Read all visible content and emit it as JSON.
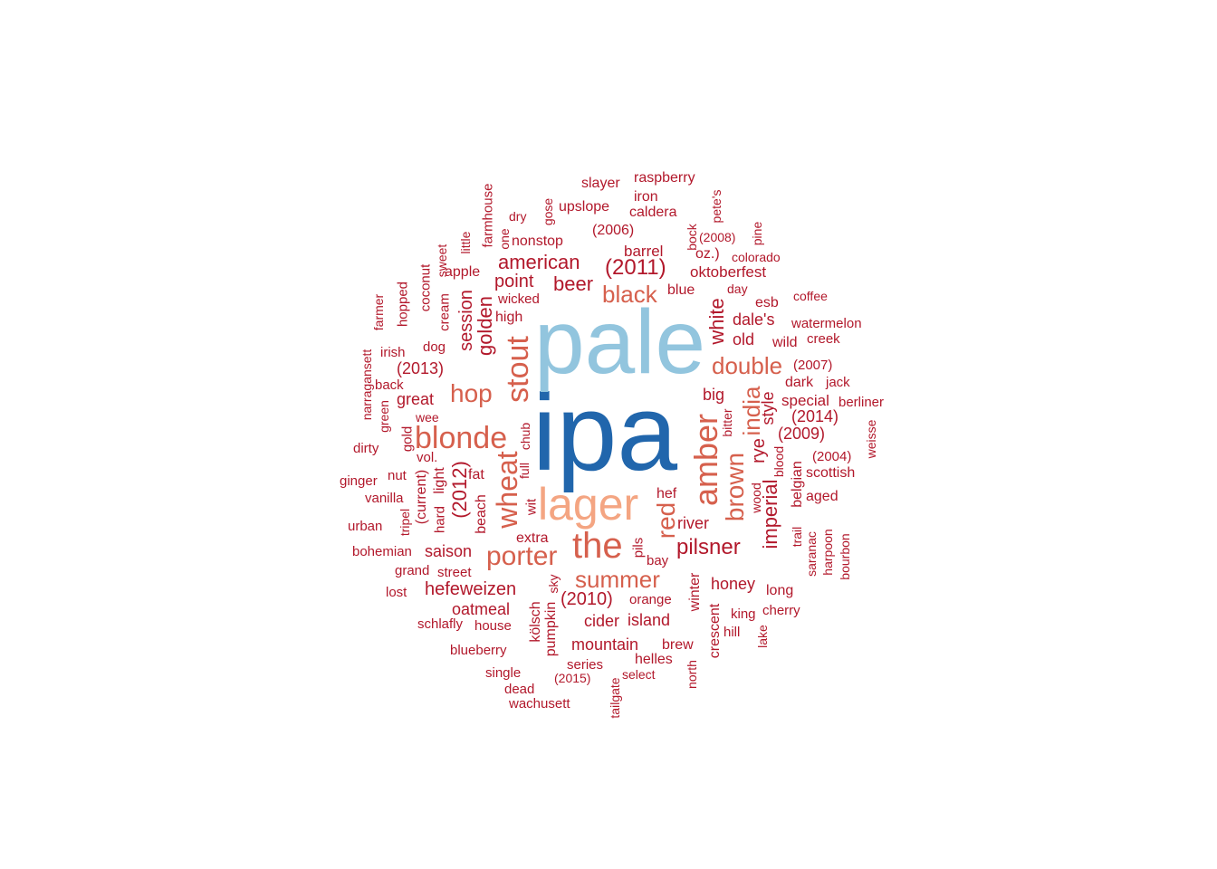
{
  "colors": {
    "c1": "#2166ac",
    "c2": "#92c5de",
    "c3": "#f4a582",
    "c4": "#d6604d",
    "c5": "#b2182b"
  },
  "words": [
    {
      "text": "ipa",
      "color": "c1"
    },
    {
      "text": "pale",
      "color": "c2"
    },
    {
      "text": "lager",
      "color": "c3"
    },
    {
      "text": "the",
      "color": "c4"
    },
    {
      "text": "amber",
      "color": "c4"
    },
    {
      "text": "blonde",
      "color": "c4"
    },
    {
      "text": "stout",
      "color": "c4"
    },
    {
      "text": "wheat",
      "color": "c4"
    },
    {
      "text": "porter",
      "color": "c4"
    },
    {
      "text": "summer",
      "color": "c4"
    },
    {
      "text": "hop",
      "color": "c4"
    },
    {
      "text": "red",
      "color": "c4"
    },
    {
      "text": "black",
      "color": "c4"
    },
    {
      "text": "double",
      "color": "c4"
    },
    {
      "text": "brown",
      "color": "c4"
    },
    {
      "text": "india",
      "color": "c4"
    },
    {
      "text": "(2011)",
      "color": "c5"
    },
    {
      "text": "(2012)",
      "color": "c5"
    },
    {
      "text": "american",
      "color": "c5"
    },
    {
      "text": "beer",
      "color": "c5"
    },
    {
      "text": "white",
      "color": "c5"
    },
    {
      "text": "golden",
      "color": "c5"
    },
    {
      "text": "pilsner",
      "color": "c5"
    },
    {
      "text": "imperial",
      "color": "c5"
    },
    {
      "text": "rye",
      "color": "c5"
    },
    {
      "text": "(2010)",
      "color": "c5"
    },
    {
      "text": "hefeweizen",
      "color": "c5"
    },
    {
      "text": "point",
      "color": "c5"
    },
    {
      "text": "session",
      "color": "c5"
    },
    {
      "text": "(2013)",
      "color": "c5"
    },
    {
      "text": "style",
      "color": "c5"
    },
    {
      "text": "dale's",
      "color": "c5"
    },
    {
      "text": "old",
      "color": "c5"
    },
    {
      "text": "saison",
      "color": "c5"
    },
    {
      "text": "great",
      "color": "c5"
    },
    {
      "text": "oatmeal",
      "color": "c5"
    },
    {
      "text": "cider",
      "color": "c5"
    },
    {
      "text": "island",
      "color": "c5"
    },
    {
      "text": "mountain",
      "color": "c5"
    },
    {
      "text": "honey",
      "color": "c5"
    },
    {
      "text": "river",
      "color": "c5"
    },
    {
      "text": "big",
      "color": "c5"
    },
    {
      "text": "(2014)",
      "color": "c5"
    },
    {
      "text": "(2009)",
      "color": "c5"
    },
    {
      "text": "special",
      "color": "c5"
    },
    {
      "text": "dark",
      "color": "c5"
    },
    {
      "text": "oktoberfest",
      "color": "c5"
    },
    {
      "text": "barrel",
      "color": "c5"
    },
    {
      "text": "nonstop",
      "color": "c5"
    },
    {
      "text": "(2006)",
      "color": "c5"
    },
    {
      "text": "upslope",
      "color": "c5"
    },
    {
      "text": "caldera",
      "color": "c5"
    },
    {
      "text": "slayer",
      "color": "c5"
    },
    {
      "text": "raspberry",
      "color": "c5"
    },
    {
      "text": "iron",
      "color": "c5"
    },
    {
      "text": "pete's",
      "color": "c5"
    },
    {
      "text": "bock",
      "color": "c5"
    },
    {
      "text": "(2008)",
      "color": "c5"
    },
    {
      "text": "pine",
      "color": "c5"
    },
    {
      "text": "oz.)",
      "color": "c5"
    },
    {
      "text": "colorado",
      "color": "c5"
    },
    {
      "text": "blue",
      "color": "c5"
    },
    {
      "text": "day",
      "color": "c5"
    },
    {
      "text": "esb",
      "color": "c5"
    },
    {
      "text": "coffee",
      "color": "c5"
    },
    {
      "text": "watermelon",
      "color": "c5"
    },
    {
      "text": "wild",
      "color": "c5"
    },
    {
      "text": "creek",
      "color": "c5"
    },
    {
      "text": "(2007)",
      "color": "c5"
    },
    {
      "text": "jack",
      "color": "c5"
    },
    {
      "text": "berliner",
      "color": "c5"
    },
    {
      "text": "weisse",
      "color": "c5"
    },
    {
      "text": "(2004)",
      "color": "c5"
    },
    {
      "text": "scottish",
      "color": "c5"
    },
    {
      "text": "aged",
      "color": "c5"
    },
    {
      "text": "belgian",
      "color": "c5"
    },
    {
      "text": "blood",
      "color": "c5"
    },
    {
      "text": "bitter",
      "color": "c5"
    },
    {
      "text": "wood",
      "color": "c5"
    },
    {
      "text": "trail",
      "color": "c5"
    },
    {
      "text": "saranac",
      "color": "c5"
    },
    {
      "text": "harpoon",
      "color": "c5"
    },
    {
      "text": "bourbon",
      "color": "c5"
    },
    {
      "text": "long",
      "color": "c5"
    },
    {
      "text": "cherry",
      "color": "c5"
    },
    {
      "text": "king",
      "color": "c5"
    },
    {
      "text": "hill",
      "color": "c5"
    },
    {
      "text": "lake",
      "color": "c5"
    },
    {
      "text": "crescent",
      "color": "c5"
    },
    {
      "text": "winter",
      "color": "c5"
    },
    {
      "text": "north",
      "color": "c5"
    },
    {
      "text": "brew",
      "color": "c5"
    },
    {
      "text": "helles",
      "color": "c5"
    },
    {
      "text": "select",
      "color": "c5"
    },
    {
      "text": "orange",
      "color": "c5"
    },
    {
      "text": "bay",
      "color": "c5"
    },
    {
      "text": "pils",
      "color": "c5"
    },
    {
      "text": "hef",
      "color": "c5"
    },
    {
      "text": "extra",
      "color": "c5"
    },
    {
      "text": "wit",
      "color": "c5"
    },
    {
      "text": "beach",
      "color": "c5"
    },
    {
      "text": "fat",
      "color": "c5"
    },
    {
      "text": "full",
      "color": "c5"
    },
    {
      "text": "chub",
      "color": "c5"
    },
    {
      "text": "light",
      "color": "c5"
    },
    {
      "text": "hard",
      "color": "c5"
    },
    {
      "text": "(current)",
      "color": "c5"
    },
    {
      "text": "vol.",
      "color": "c5"
    },
    {
      "text": "nut",
      "color": "c5"
    },
    {
      "text": "gold",
      "color": "c5"
    },
    {
      "text": "wee",
      "color": "c5"
    },
    {
      "text": "vanilla",
      "color": "c5"
    },
    {
      "text": "tripel",
      "color": "c5"
    },
    {
      "text": "street",
      "color": "c5"
    },
    {
      "text": "grand",
      "color": "c5"
    },
    {
      "text": "sky",
      "color": "c5"
    },
    {
      "text": "kölsch",
      "color": "c5"
    },
    {
      "text": "pumpkin",
      "color": "c5"
    },
    {
      "text": "schlafly",
      "color": "c5"
    },
    {
      "text": "house",
      "color": "c5"
    },
    {
      "text": "blueberry",
      "color": "c5"
    },
    {
      "text": "series",
      "color": "c5"
    },
    {
      "text": "single",
      "color": "c5"
    },
    {
      "text": "(2015)",
      "color": "c5"
    },
    {
      "text": "tailgate",
      "color": "c5"
    },
    {
      "text": "dead",
      "color": "c5"
    },
    {
      "text": "wachusett",
      "color": "c5"
    },
    {
      "text": "lost",
      "color": "c5"
    },
    {
      "text": "bohemian",
      "color": "c5"
    },
    {
      "text": "urban",
      "color": "c5"
    },
    {
      "text": "ginger",
      "color": "c5"
    },
    {
      "text": "dirty",
      "color": "c5"
    },
    {
      "text": "green",
      "color": "c5"
    },
    {
      "text": "narragansett",
      "color": "c5"
    },
    {
      "text": "back",
      "color": "c5"
    },
    {
      "text": "irish",
      "color": "c5"
    },
    {
      "text": "farmer",
      "color": "c5"
    },
    {
      "text": "hopped",
      "color": "c5"
    },
    {
      "text": "coconut",
      "color": "c5"
    },
    {
      "text": "dog",
      "color": "c5"
    },
    {
      "text": "cream",
      "color": "c5"
    },
    {
      "text": "sweet",
      "color": "c5"
    },
    {
      "text": "apple",
      "color": "c5"
    },
    {
      "text": "wicked",
      "color": "c5"
    },
    {
      "text": "high",
      "color": "c5"
    },
    {
      "text": "little",
      "color": "c5"
    },
    {
      "text": "one",
      "color": "c5"
    },
    {
      "text": "farmhouse",
      "color": "c5"
    },
    {
      "text": "dry",
      "color": "c5"
    },
    {
      "text": "gose",
      "color": "c5"
    }
  ]
}
